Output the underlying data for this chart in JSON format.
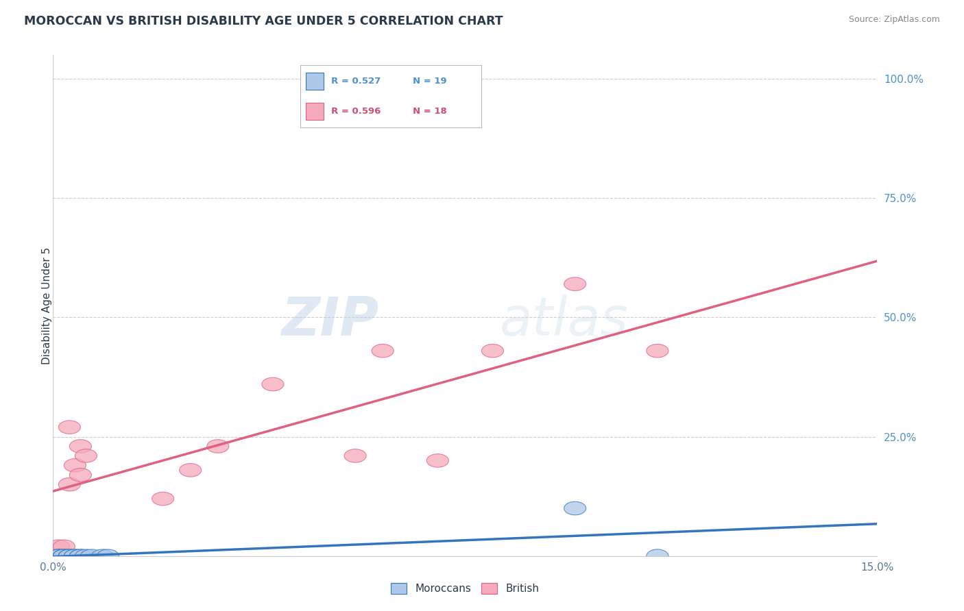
{
  "title": "MOROCCAN VS BRITISH DISABILITY AGE UNDER 5 CORRELATION CHART",
  "source_text": "Source: ZipAtlas.com",
  "ylabel": "Disability Age Under 5",
  "xlim": [
    0.0,
    0.15
  ],
  "ylim": [
    0.0,
    1.05
  ],
  "moroccan_x": [
    0.001,
    0.001,
    0.001,
    0.002,
    0.002,
    0.002,
    0.003,
    0.003,
    0.003,
    0.004,
    0.004,
    0.005,
    0.005,
    0.006,
    0.007,
    0.009,
    0.01,
    0.095,
    0.11
  ],
  "moroccan_y": [
    0.0,
    0.0,
    0.0,
    0.0,
    0.0,
    0.0,
    0.0,
    0.0,
    0.0,
    0.0,
    0.0,
    0.0,
    0.0,
    0.0,
    0.0,
    0.0,
    0.0,
    0.1,
    0.0
  ],
  "british_x": [
    0.001,
    0.002,
    0.003,
    0.003,
    0.004,
    0.005,
    0.005,
    0.006,
    0.02,
    0.025,
    0.03,
    0.04,
    0.055,
    0.06,
    0.07,
    0.08,
    0.095,
    0.11
  ],
  "british_y": [
    0.02,
    0.02,
    0.27,
    0.15,
    0.19,
    0.23,
    0.17,
    0.21,
    0.12,
    0.18,
    0.23,
    0.36,
    0.21,
    0.43,
    0.2,
    0.43,
    0.57,
    0.43
  ],
  "moroccan_R": 0.527,
  "moroccan_N": 19,
  "british_R": 0.596,
  "british_N": 18,
  "moroccan_color": "#adc8e8",
  "british_color": "#f5aabb",
  "moroccan_line_color": "#3575c0",
  "british_line_color": "#e06080",
  "grid_color": "#cccccc",
  "background_color": "#ffffff",
  "watermark_zip": "ZIP",
  "watermark_atlas": "atlas",
  "legend_moroccan_label": "Moroccans",
  "legend_british_label": "British",
  "title_color": "#2b3a4a",
  "axis_label_color": "#2b3a4a",
  "axis_tick_color": "#5a7a9a",
  "right_tick_color": "#5090d0",
  "source_color": "#888888"
}
